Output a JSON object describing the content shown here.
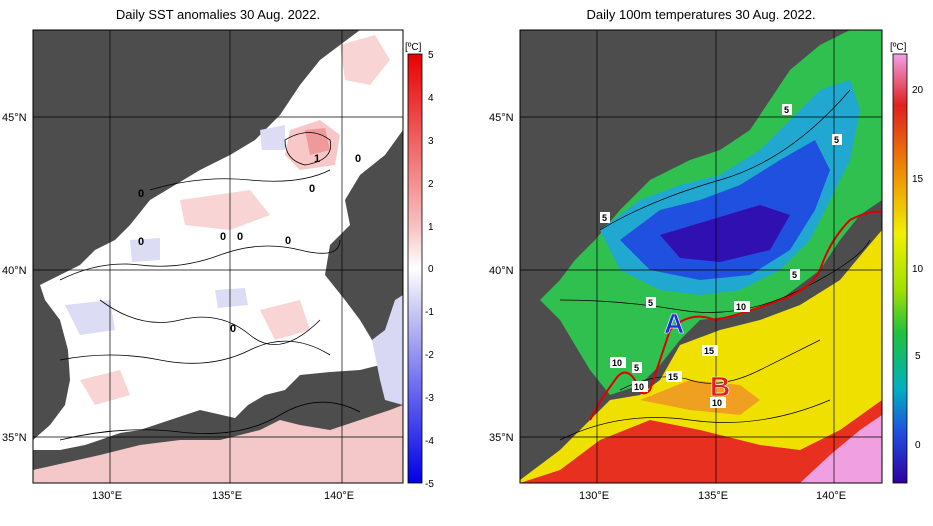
{
  "left_panel": {
    "title": "Daily SST anomalies 30 Aug. 2022.",
    "unit": "[ºC]",
    "colorbar_ticks": [
      "5",
      "4",
      "3",
      "2",
      "1",
      "0",
      "-1",
      "-2",
      "-3",
      "-4",
      "-5"
    ],
    "contour_labels": [
      "1",
      "0",
      "0",
      "0",
      "0",
      "0",
      "0",
      "0",
      "0"
    ],
    "lat_labels": [
      "45°N",
      "40°N",
      "35°N"
    ],
    "lon_labels": [
      "130°E",
      "135°E",
      "140°E"
    ]
  },
  "right_panel": {
    "title": "Daily 100m temperatures 30 Aug. 2022.",
    "unit": "[ºC]",
    "colorbar_ticks": [
      "20",
      "15",
      "10",
      "5",
      "0"
    ],
    "contour_labels": [
      "5",
      "5",
      "5",
      "5",
      "5",
      "10",
      "5",
      "15",
      "10",
      "15",
      "10",
      "10"
    ],
    "region_labels": [
      "A",
      "B"
    ],
    "lat_labels": [
      "45°N",
      "40°N",
      "35°N"
    ],
    "lon_labels": [
      "130°E",
      "135°E",
      "140°E"
    ]
  },
  "colors": {
    "land": "#4d4d4d",
    "anomaly_warm": "#e84040",
    "anomaly_cold": "#3c3cf0",
    "front_line": "#e00000",
    "label_A": "#1a2fd8",
    "label_B": "#e02020"
  }
}
